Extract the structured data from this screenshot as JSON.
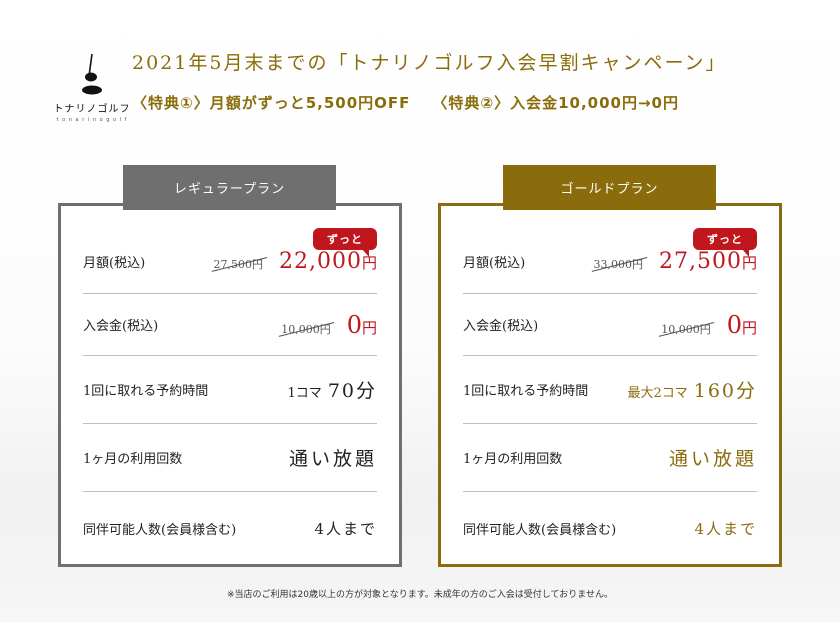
{
  "brand": {
    "name": "トナリノゴルフ",
    "sub": "t o n a r i n o g o l f"
  },
  "header": {
    "title": "2021年5月末までの「トナリノゴルフ入会早割キャンペーン」",
    "perk1": "〈特典①〉月額がずっと5,500円OFF",
    "perk2": "〈特典②〉入会金10,000円→0円"
  },
  "plans": {
    "regular": {
      "name": "レギュラープラン",
      "badge": "ずっと",
      "monthly_label": "月額(税込)",
      "monthly_old": "27,500円",
      "monthly_new": "22,000",
      "monthly_unit": "円",
      "entry_label": "入会金(税込)",
      "entry_old": "10,000円",
      "entry_new": "0",
      "entry_unit": "円",
      "time_label": "1回に取れる予約時間",
      "time_small": "1コマ",
      "time_big": "70分",
      "count_label": "1ヶ月の利用回数",
      "count_value": "通い放題",
      "companion_label": "同伴可能人数(会員様含む)",
      "companion_value": "4人まで"
    },
    "gold": {
      "name": "ゴールドプラン",
      "badge": "ずっと",
      "monthly_label": "月額(税込)",
      "monthly_old": "33,000円",
      "monthly_new": "27,500",
      "monthly_unit": "円",
      "entry_label": "入会金(税込)",
      "entry_old": "10,000円",
      "entry_new": "0",
      "entry_unit": "円",
      "time_label": "1回に取れる予約時間",
      "time_small": "最大2コマ",
      "time_big": "160分",
      "count_label": "1ヶ月の利用回数",
      "count_value": "通い放題",
      "companion_label": "同伴可能人数(会員様含む)",
      "companion_value": "4人まで"
    }
  },
  "footnote": "※当店のご利用は20歳以上の方が対象となります。未成年の方のご入会は受付しておりません。",
  "colors": {
    "gold": "#8a6c0d",
    "gray": "#6f6f6f",
    "red": "#c0161e"
  }
}
